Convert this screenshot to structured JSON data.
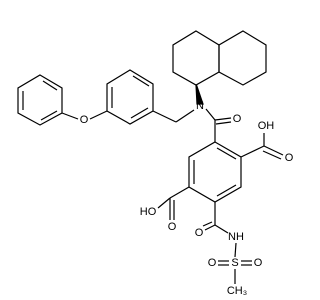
{
  "atoms": [
    {
      "label": "O"
    },
    {
      "label": "N"
    },
    {
      "label": "O"
    },
    {
      "label": "OH"
    },
    {
      "label": "O"
    },
    {
      "label": "HO"
    },
    {
      "label": "O"
    },
    {
      "label": "O"
    },
    {
      "label": "NH"
    },
    {
      "label": "S"
    },
    {
      "label": "O"
    },
    {
      "label": "O"
    },
    {
      "label": "CH₃"
    }
  ]
}
